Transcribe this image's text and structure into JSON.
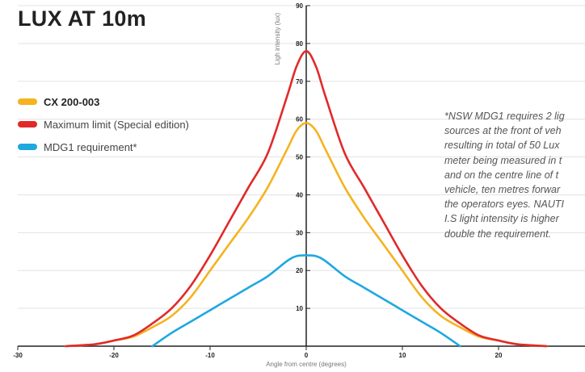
{
  "chart_data": {
    "type": "line",
    "title": "LUX AT 10m",
    "xlabel": "Angle from centre (degrees)",
    "ylabel": "Ligh intensity (lux)",
    "xlim": [
      -30,
      30
    ],
    "ylim": [
      0,
      90
    ],
    "x_ticks": [
      -30,
      -20,
      -10,
      0,
      10,
      20
    ],
    "y_ticks": [
      10,
      20,
      30,
      40,
      50,
      60,
      70,
      80,
      90
    ],
    "grid": true,
    "legend_position": "left",
    "series": [
      {
        "name": "CX 200-003",
        "color": "#f5b320",
        "x": [
          -25,
          -22,
          -20,
          -18,
          -16,
          -14,
          -12,
          -10,
          -8,
          -6,
          -4,
          -2,
          -1,
          0,
          1,
          2,
          4,
          6,
          8,
          10,
          12,
          14,
          16,
          18,
          20,
          22,
          25
        ],
        "y": [
          0,
          0.5,
          1.5,
          2.5,
          5,
          8,
          13,
          20,
          27,
          34,
          42,
          52,
          57,
          59,
          57,
          52,
          42,
          34,
          27,
          20,
          13,
          8,
          5,
          2.5,
          1.5,
          0.5,
          0
        ]
      },
      {
        "name": "Maximum limit (Special edition)",
        "color": "#e02a2a",
        "x": [
          -25,
          -22,
          -20,
          -18,
          -16,
          -14,
          -12,
          -10,
          -8,
          -6,
          -4,
          -2,
          -1,
          0,
          1,
          2,
          4,
          6,
          8,
          10,
          12,
          14,
          16,
          18,
          20,
          22,
          25
        ],
        "y": [
          0,
          0.5,
          1.5,
          2.8,
          6,
          10,
          16,
          24,
          33,
          42,
          51,
          66,
          74,
          78,
          74,
          66,
          51,
          42,
          33,
          24,
          16,
          10,
          6,
          2.8,
          1.5,
          0.5,
          0
        ]
      },
      {
        "name": "MDG1 requirement",
        "color": "#1fa8e0",
        "x": [
          -16,
          -14,
          -12,
          -10,
          -8,
          -6,
          -4,
          -2,
          -1,
          0,
          1,
          2,
          4,
          6,
          8,
          10,
          12,
          14,
          16
        ],
        "y": [
          0,
          3.5,
          6.5,
          9.5,
          12.5,
          15.5,
          18.5,
          22.5,
          23.8,
          24,
          23.8,
          22.5,
          18.5,
          15.5,
          12.5,
          9.5,
          6.5,
          3.5,
          0
        ]
      }
    ]
  },
  "legend": {
    "items": [
      {
        "label": "CX 200-003",
        "color": "#f5b320"
      },
      {
        "label": "Maximum limit (Special edition)",
        "color": "#e02a2a"
      },
      {
        "label": "MDG1 requirement*",
        "color": "#1fa8e0"
      }
    ]
  },
  "note": "*NSW MDG1 requires 2 lig\nsources at the front of veh\nresulting in total of 50 Lux\nmeter being measured in t\nand on the centre line of t\nvehicle, ten metres forwar\nthe operators eyes. NAUTI\nI.S light intensity is higher\ndouble the requirement."
}
